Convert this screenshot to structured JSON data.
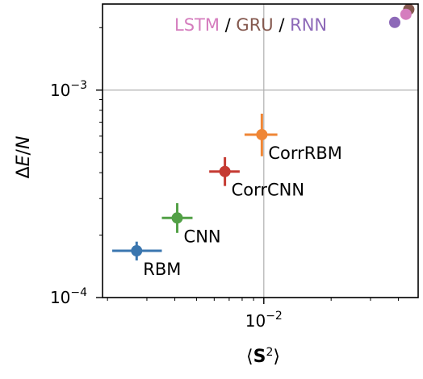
{
  "chart_data": {
    "type": "scatter",
    "xscale": "log",
    "yscale": "log",
    "xlim": [
      0.0019,
      0.049
    ],
    "ylim": [
      0.0001,
      0.0026
    ],
    "grid": true,
    "xlabel": "⟨S²⟩",
    "xlabel_parts": {
      "open": "⟨",
      "symbol": "S",
      "sup": "2",
      "close": "⟩"
    },
    "ylabel": "ΔE/N",
    "ylabel_parts": {
      "delta": "Δ",
      "e": "E",
      "slash": "/",
      "n": "N"
    },
    "x_ticks": [
      {
        "value": 0.01,
        "base": "10",
        "exp": "−2"
      }
    ],
    "y_ticks": [
      {
        "value": 0.0001,
        "base": "10",
        "exp": "−4"
      },
      {
        "value": 0.001,
        "base": "10",
        "exp": "−3"
      }
    ],
    "points": [
      {
        "name": "RBM",
        "x": 0.0027,
        "y": 0.000168,
        "xerr": [
          0.0021,
          0.0035
        ],
        "yerr": [
          0.000151,
          0.000186
        ],
        "color": "#3a76af",
        "label": "RBM",
        "label_pos": "below-right"
      },
      {
        "name": "CNN",
        "x": 0.0041,
        "y": 0.000242,
        "xerr": [
          0.0035,
          0.0048
        ],
        "yerr": [
          0.000205,
          0.000285
        ],
        "color": "#52a046",
        "label": "CNN",
        "label_pos": "below-right"
      },
      {
        "name": "CorrCNN",
        "x": 0.0067,
        "y": 0.000405,
        "xerr": [
          0.0057,
          0.0078
        ],
        "yerr": [
          0.000345,
          0.000475
        ],
        "color": "#c53a32",
        "label": "CorrCNN",
        "label_pos": "below-right"
      },
      {
        "name": "CorrRBM",
        "x": 0.0098,
        "y": 0.00061,
        "xerr": [
          0.0082,
          0.0115
        ],
        "yerr": [
          0.00048,
          0.00077
        ],
        "color": "#ef8636",
        "label": "CorrRBM",
        "label_pos": "below-right"
      },
      {
        "name": "RNN",
        "x": 0.0385,
        "y": 0.00212,
        "color": "#8d69b8",
        "label": "",
        "label_pos": ""
      },
      {
        "name": "GRU",
        "x": 0.0445,
        "y": 0.00245,
        "color": "#84584e",
        "label": "",
        "label_pos": ""
      },
      {
        "name": "LSTM",
        "x": 0.0432,
        "y": 0.00232,
        "color": "#d57dbe",
        "label": "",
        "label_pos": ""
      }
    ],
    "legend_text": {
      "placement": "top-right",
      "parts": [
        {
          "text": "LSTM",
          "color": "#d57dbe"
        },
        {
          "text": " / ",
          "color": "#000000"
        },
        {
          "text": "GRU",
          "color": "#84584e"
        },
        {
          "text": " / ",
          "color": "#000000"
        },
        {
          "text": "RNN",
          "color": "#8d69b8"
        }
      ]
    }
  }
}
